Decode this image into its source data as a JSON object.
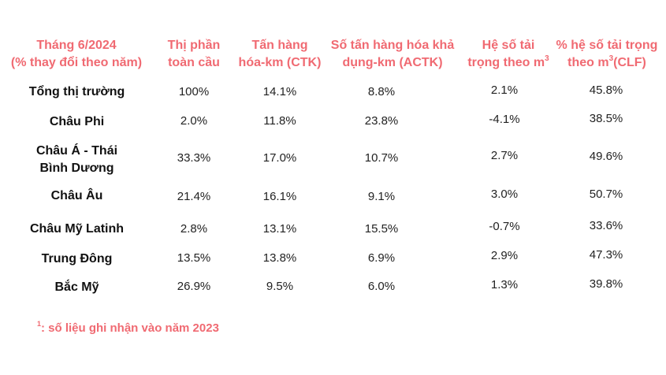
{
  "headers": {
    "col0": [
      "Tháng 6/2024",
      "(% thay đổi theo năm)"
    ],
    "col1": [
      "Thị phần",
      "toàn cầu"
    ],
    "col2": [
      "Tấn hàng",
      "hóa-km (CTK)"
    ],
    "col3": [
      "Số tấn hàng hóa khả",
      "dụng-km (ACTK)"
    ],
    "col4": [
      "Hệ số tải",
      "trọng theo m"
    ],
    "col4_sup": "3",
    "col5_line1": "% hệ số tải trọng",
    "col5_line2_a": "theo m",
    "col5_sup": "3",
    "col5_line2_b": "(CLF)"
  },
  "rows": [
    {
      "label": [
        "Tổng thị trường"
      ],
      "values": [
        "100%",
        "14.1%",
        "8.8%",
        "2.1%",
        "45.8%"
      ]
    },
    {
      "label": [
        "Châu Phi"
      ],
      "values": [
        "2.0%",
        "11.8%",
        "23.8%",
        "-4.1%",
        "38.5%"
      ]
    },
    {
      "label": [
        "Châu Á - Thái",
        "Bình Dương"
      ],
      "values": [
        "33.3%",
        "17.0%",
        "10.7%",
        "2.7%",
        "49.6%"
      ]
    },
    {
      "label": [
        "Châu Âu"
      ],
      "values": [
        "21.4%",
        "16.1%",
        "9.1%",
        "3.0%",
        "50.7%"
      ]
    },
    {
      "label": [
        "Châu Mỹ Latinh"
      ],
      "values": [
        "2.8%",
        "13.1%",
        "15.5%",
        "-0.7%",
        "33.6%"
      ]
    },
    {
      "label": [
        "Trung Đông"
      ],
      "values": [
        "13.5%",
        "13.8%",
        "6.9%",
        "2.9%",
        "47.3%"
      ]
    },
    {
      "label": [
        "Bắc Mỹ"
      ],
      "values": [
        "26.9%",
        "9.5%",
        "6.0%",
        "1.3%",
        "39.8%"
      ]
    }
  ],
  "footnote": {
    "marker": "1",
    "text": ": số liệu ghi nhận vào năm 2023"
  },
  "colors": {
    "accent": "#f06a72",
    "text": "#111111"
  }
}
